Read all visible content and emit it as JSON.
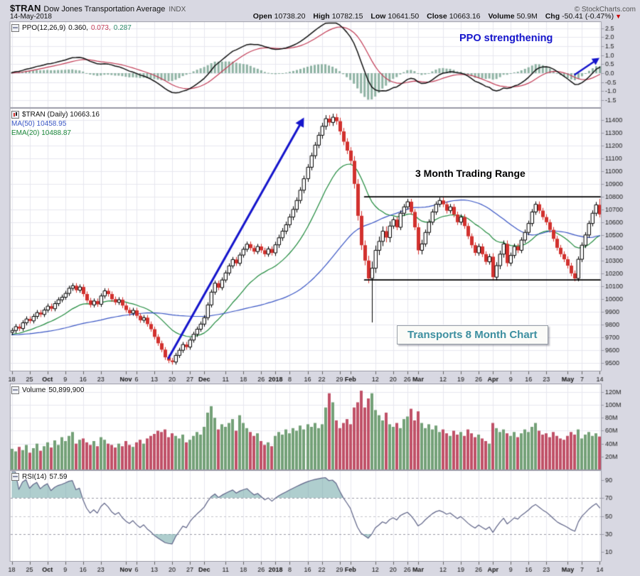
{
  "header": {
    "symbol": "$TRAN",
    "name": "Dow Jones Transportation Average",
    "exchange": "INDX",
    "date": "14-May-2018",
    "copyright": "© StockCharts.com",
    "quote": {
      "open_label": "Open",
      "open": "10738.20",
      "high_label": "High",
      "high": "10782.15",
      "low_label": "Low",
      "low": "10641.50",
      "close_label": "Close",
      "close": "10663.16",
      "volume_label": "Volume",
      "volume": "50.9M",
      "chg_label": "Chg",
      "chg": "-50.41 (-0.47%)",
      "chg_arrow": "▼"
    }
  },
  "labels": {
    "ppo": {
      "name": "PPO(12,26,9)",
      "v1": "0.360,",
      "v2": "0.073,",
      "v3": "0.287"
    },
    "price": {
      "main": "$TRAN (Daily) 10663.16",
      "ma": "MA(50) 10458.95",
      "ema": "EMA(20) 10488.87"
    },
    "volume": {
      "name": "Volume",
      "value": "50,899,900"
    },
    "rsi": {
      "name": "RSI(14)",
      "value": "57.59"
    }
  },
  "annotations": {
    "ppo_text": "PPO strengthening",
    "range_text": "3 Month Trading Range",
    "box_text": "Transports 8 Month Chart"
  },
  "colors": {
    "margin": "#d8d8e2",
    "plot_bg": "#ffffff",
    "grid": "#e7e7ef",
    "border": "#9a9aa6",
    "up_outline": "#000000",
    "down": "#d2312e",
    "ma": "#3a56c5",
    "ema": "#1f8a3c",
    "vol_up": "#74a178",
    "vol_down": "#c05168",
    "ppo_hist": "#8fb3a4",
    "ppo_line": "#111111",
    "ppo_signal": "#c23b55",
    "rsi": "#5f6488",
    "rsi_fill": "rgba(110,165,165,0.55)",
    "annotation_blue": "#1515cc",
    "range_line": "#000000",
    "box_text": "#3d8fa0",
    "chg_arrow_red": "#cc0000"
  },
  "chart_data": {
    "type": "candlestick",
    "title": "Dow Jones Transportation Average ($TRAN) Daily, Sep 2017 - May 2018",
    "history_seed": {
      "value": 9720,
      "days": 50
    },
    "x_ticks": [
      [
        "18",
        0,
        0
      ],
      [
        "25",
        5,
        0
      ],
      [
        "Oct",
        10,
        1
      ],
      [
        "9",
        15,
        0
      ],
      [
        "16",
        20,
        0
      ],
      [
        "23",
        25,
        0
      ],
      [
        "Nov",
        32,
        1
      ],
      [
        "6",
        35,
        0
      ],
      [
        "13",
        40,
        0
      ],
      [
        "20",
        45,
        0
      ],
      [
        "27",
        50,
        0
      ],
      [
        "Dec",
        54,
        1
      ],
      [
        "11",
        60,
        0
      ],
      [
        "18",
        65,
        0
      ],
      [
        "26",
        70,
        0
      ],
      [
        "2018",
        74,
        1
      ],
      [
        "8",
        78,
        0
      ],
      [
        "16",
        83,
        0
      ],
      [
        "22",
        87,
        0
      ],
      [
        "29",
        92,
        0
      ],
      [
        "Feb",
        95,
        1
      ],
      [
        "12",
        102,
        0
      ],
      [
        "20",
        107,
        0
      ],
      [
        "26",
        111,
        0
      ],
      [
        "Mar",
        114,
        1
      ],
      [
        "12",
        121,
        0
      ],
      [
        "19",
        126,
        0
      ],
      [
        "26",
        131,
        0
      ],
      [
        "Apr",
        135,
        1
      ],
      [
        "9",
        140,
        0
      ],
      [
        "16",
        145,
        0
      ],
      [
        "23",
        150,
        0
      ],
      [
        "May",
        156,
        1
      ],
      [
        "7",
        160,
        0
      ],
      [
        "14",
        165,
        0
      ]
    ],
    "candles": [
      [
        9740,
        9773,
        9722,
        9755
      ],
      [
        9755,
        9803,
        9737,
        9785
      ],
      [
        9785,
        9803,
        9752,
        9770
      ],
      [
        9770,
        9833,
        9752,
        9815
      ],
      [
        9815,
        9863,
        9797,
        9845
      ],
      [
        9845,
        9863,
        9812,
        9830
      ],
      [
        9830,
        9883,
        9812,
        9865
      ],
      [
        9865,
        9913,
        9847,
        9895
      ],
      [
        9895,
        9913,
        9862,
        9880
      ],
      [
        9880,
        9933,
        9862,
        9915
      ],
      [
        9915,
        9963,
        9897,
        9945
      ],
      [
        9945,
        9963,
        9907,
        9925
      ],
      [
        9925,
        9983,
        9907,
        9965
      ],
      [
        9965,
        10013,
        9947,
        9995
      ],
      [
        9995,
        10033,
        9977,
        10015
      ],
      [
        10015,
        10063,
        9997,
        10045
      ],
      [
        10045,
        10103,
        10027,
        10085
      ],
      [
        10085,
        10123,
        10067,
        10105
      ],
      [
        10105,
        10123,
        10052,
        10070
      ],
      [
        10070,
        10113,
        10052,
        10095
      ],
      [
        10095,
        10113,
        10022,
        10040
      ],
      [
        10040,
        10058,
        9972,
        9990
      ],
      [
        9990,
        10008,
        9937,
        9955
      ],
      [
        9955,
        10003,
        9937,
        9985
      ],
      [
        9985,
        10003,
        9942,
        9960
      ],
      [
        9960,
        10043,
        9942,
        10025
      ],
      [
        10025,
        10083,
        10007,
        10065
      ],
      [
        10065,
        10083,
        10022,
        10040
      ],
      [
        10040,
        10058,
        9982,
        10000
      ],
      [
        10000,
        10018,
        9957,
        9975
      ],
      [
        9975,
        10013,
        9957,
        9995
      ],
      [
        9995,
        10013,
        9932,
        9950
      ],
      [
        9950,
        9968,
        9897,
        9915
      ],
      [
        9915,
        9933,
        9872,
        9890
      ],
      [
        9890,
        9930,
        9872,
        9912
      ],
      [
        9912,
        9930,
        9852,
        9870
      ],
      [
        9870,
        9888,
        9817,
        9835
      ],
      [
        9835,
        9873,
        9817,
        9855
      ],
      [
        9855,
        9873,
        9787,
        9805
      ],
      [
        9805,
        9823,
        9747,
        9765
      ],
      [
        9765,
        9783,
        9687,
        9705
      ],
      [
        9705,
        9723,
        9637,
        9655
      ],
      [
        9655,
        9673,
        9587,
        9605
      ],
      [
        9605,
        9623,
        9527,
        9545
      ],
      [
        9545,
        9563,
        9502,
        9520
      ],
      [
        9520,
        9538,
        9490,
        9508
      ],
      [
        9508,
        9578,
        9490,
        9560
      ],
      [
        9560,
        9618,
        9542,
        9600
      ],
      [
        9600,
        9663,
        9582,
        9645
      ],
      [
        9645,
        9663,
        9607,
        9625
      ],
      [
        9625,
        9698,
        9607,
        9680
      ],
      [
        9680,
        9743,
        9662,
        9725
      ],
      [
        9725,
        9783,
        9707,
        9765
      ],
      [
        9765,
        9823,
        9747,
        9805
      ],
      [
        9805,
        9873,
        9787,
        9855
      ],
      [
        9855,
        9973,
        9837,
        9955
      ],
      [
        9955,
        10073,
        9937,
        10055
      ],
      [
        10055,
        10143,
        10037,
        10125
      ],
      [
        10125,
        10143,
        10072,
        10090
      ],
      [
        10090,
        10168,
        10072,
        10150
      ],
      [
        10150,
        10223,
        10132,
        10205
      ],
      [
        10205,
        10278,
        10187,
        10260
      ],
      [
        10260,
        10328,
        10242,
        10310
      ],
      [
        10310,
        10328,
        10262,
        10280
      ],
      [
        10280,
        10363,
        10262,
        10345
      ],
      [
        10345,
        10408,
        10327,
        10390
      ],
      [
        10390,
        10448,
        10372,
        10430
      ],
      [
        10430,
        10448,
        10382,
        10400
      ],
      [
        10400,
        10418,
        10354,
        10372
      ],
      [
        10372,
        10430,
        10354,
        10412
      ],
      [
        10412,
        10430,
        10364,
        10382
      ],
      [
        10382,
        10400,
        10334,
        10352
      ],
      [
        10352,
        10410,
        10334,
        10392
      ],
      [
        10392,
        10410,
        10344,
        10362
      ],
      [
        10362,
        10447,
        10340,
        10425
      ],
      [
        10425,
        10502,
        10403,
        10480
      ],
      [
        10480,
        10554,
        10458,
        10532
      ],
      [
        10532,
        10604,
        10510,
        10582
      ],
      [
        10582,
        10664,
        10560,
        10642
      ],
      [
        10642,
        10724,
        10620,
        10702
      ],
      [
        10702,
        10794,
        10680,
        10772
      ],
      [
        10772,
        10874,
        10750,
        10852
      ],
      [
        10852,
        10964,
        10830,
        10942
      ],
      [
        10942,
        11054,
        10920,
        11032
      ],
      [
        11032,
        11144,
        11010,
        11122
      ],
      [
        11122,
        11227,
        11100,
        11205
      ],
      [
        11205,
        11304,
        11183,
        11282
      ],
      [
        11282,
        11377,
        11257,
        11352
      ],
      [
        11352,
        11437,
        11327,
        11412
      ],
      [
        11412,
        11437,
        11357,
        11382
      ],
      [
        11382,
        11448,
        11357,
        11423
      ],
      [
        11423,
        11448,
        11367,
        11392
      ],
      [
        11392,
        11417,
        11287,
        11312
      ],
      [
        11312,
        11337,
        11207,
        11232
      ],
      [
        11232,
        11257,
        11137,
        11162
      ],
      [
        11162,
        11187,
        11057,
        11082
      ],
      [
        11082,
        11117,
        10867,
        10902
      ],
      [
        10902,
        10937,
        10617,
        10652
      ],
      [
        10652,
        10687,
        10387,
        10422
      ],
      [
        10422,
        10457,
        10267,
        10302
      ],
      [
        10302,
        10337,
        10127,
        10162
      ],
      [
        10162,
        10292,
        9820,
        10242
      ],
      [
        10242,
        10417,
        10207,
        10382
      ],
      [
        10382,
        10487,
        10347,
        10452
      ],
      [
        10452,
        10567,
        10417,
        10532
      ],
      [
        10532,
        10567,
        10447,
        10482
      ],
      [
        10482,
        10607,
        10447,
        10572
      ],
      [
        10572,
        10642,
        10552,
        10622
      ],
      [
        10622,
        10642,
        10542,
        10562
      ],
      [
        10562,
        10692,
        10542,
        10672
      ],
      [
        10672,
        10742,
        10652,
        10722
      ],
      [
        10722,
        10782,
        10702,
        10762
      ],
      [
        10762,
        10782,
        10662,
        10682
      ],
      [
        10682,
        10702,
        10542,
        10562
      ],
      [
        10562,
        10592,
        10352,
        10382
      ],
      [
        10382,
        10462,
        10352,
        10432
      ],
      [
        10432,
        10542,
        10412,
        10522
      ],
      [
        10522,
        10622,
        10502,
        10602
      ],
      [
        10602,
        10702,
        10582,
        10682
      ],
      [
        10682,
        10762,
        10662,
        10742
      ],
      [
        10742,
        10792,
        10722,
        10772
      ],
      [
        10772,
        10792,
        10722,
        10742
      ],
      [
        10742,
        10762,
        10672,
        10692
      ],
      [
        10692,
        10742,
        10672,
        10722
      ],
      [
        10722,
        10742,
        10642,
        10662
      ],
      [
        10662,
        10682,
        10582,
        10602
      ],
      [
        10602,
        10662,
        10582,
        10642
      ],
      [
        10642,
        10662,
        10552,
        10572
      ],
      [
        10572,
        10592,
        10472,
        10492
      ],
      [
        10492,
        10512,
        10402,
        10422
      ],
      [
        10422,
        10442,
        10342,
        10362
      ],
      [
        10362,
        10432,
        10342,
        10412
      ],
      [
        10412,
        10432,
        10332,
        10352
      ],
      [
        10352,
        10372,
        10272,
        10292
      ],
      [
        10292,
        10352,
        10272,
        10332
      ],
      [
        10332,
        10357,
        10147,
        10172
      ],
      [
        10172,
        10287,
        10147,
        10262
      ],
      [
        10262,
        10377,
        10237,
        10352
      ],
      [
        10352,
        10457,
        10327,
        10432
      ],
      [
        10432,
        10457,
        10257,
        10282
      ],
      [
        10282,
        10362,
        10262,
        10342
      ],
      [
        10342,
        10432,
        10322,
        10412
      ],
      [
        10412,
        10432,
        10362,
        10382
      ],
      [
        10382,
        10482,
        10362,
        10462
      ],
      [
        10462,
        10542,
        10442,
        10522
      ],
      [
        10522,
        10612,
        10502,
        10592
      ],
      [
        10592,
        10702,
        10572,
        10682
      ],
      [
        10682,
        10762,
        10662,
        10742
      ],
      [
        10742,
        10762,
        10672,
        10692
      ],
      [
        10692,
        10712,
        10622,
        10642
      ],
      [
        10642,
        10662,
        10582,
        10602
      ],
      [
        10602,
        10622,
        10522,
        10542
      ],
      [
        10542,
        10562,
        10452,
        10472
      ],
      [
        10472,
        10492,
        10382,
        10402
      ],
      [
        10402,
        10422,
        10332,
        10352
      ],
      [
        10352,
        10372,
        10292,
        10312
      ],
      [
        10312,
        10332,
        10242,
        10262
      ],
      [
        10262,
        10282,
        10182,
        10202
      ],
      [
        10202,
        10222,
        10142,
        10162
      ],
      [
        10162,
        10332,
        10142,
        10312
      ],
      [
        10312,
        10442,
        10292,
        10422
      ],
      [
        10422,
        10522,
        10402,
        10502
      ],
      [
        10502,
        10612,
        10482,
        10592
      ],
      [
        10592,
        10692,
        10572,
        10672
      ],
      [
        10672,
        10758,
        10652,
        10738
      ],
      [
        10738,
        10782.15,
        10641.5,
        10663.16
      ]
    ],
    "volume": [
      32,
      28,
      35,
      30,
      38,
      26,
      33,
      40,
      29,
      36,
      42,
      34,
      45,
      38,
      50,
      44,
      52,
      58,
      40,
      46,
      48,
      42,
      38,
      44,
      36,
      50,
      46,
      40,
      38,
      34,
      40,
      36,
      44,
      38,
      35,
      42,
      46,
      40,
      48,
      52,
      55,
      60,
      58,
      62,
      50,
      56,
      52,
      48,
      54,
      42,
      46,
      52,
      58,
      54,
      66,
      88,
      98,
      80,
      62,
      70,
      66,
      72,
      78,
      60,
      84,
      72,
      64,
      58,
      52,
      56,
      44,
      38,
      42,
      36,
      52,
      58,
      54,
      62,
      56,
      64,
      60,
      68,
      62,
      70,
      66,
      72,
      64,
      70,
      96,
      118,
      104,
      76,
      64,
      72,
      78,
      70,
      96,
      104,
      122,
      96,
      110,
      118,
      92,
      84,
      76,
      88,
      70,
      66,
      72,
      64,
      78,
      82,
      94,
      76,
      90,
      72,
      64,
      70,
      62,
      68,
      58,
      62,
      56,
      52,
      60,
      54,
      58,
      52,
      62,
      56,
      50,
      54,
      48,
      44,
      40,
      72,
      64,
      58,
      62,
      56,
      52,
      58,
      50,
      56,
      62,
      58,
      66,
      72,
      60,
      54,
      56,
      50,
      58,
      52,
      48,
      46,
      52,
      58,
      54,
      62,
      48,
      54,
      58,
      52,
      56,
      51
    ],
    "volume_axis": {
      "ticks": [
        20,
        40,
        60,
        80,
        100,
        120
      ],
      "max": 132,
      "unit": "M"
    },
    "ppo": {
      "params": [
        12,
        26,
        9
      ],
      "last": [
        0.36,
        0.073,
        0.287
      ],
      "y_ticks": [
        2.5,
        2.0,
        1.5,
        1.0,
        0.5,
        0.0,
        -0.5,
        -1.0,
        -1.5
      ],
      "y_range": [
        -1.9,
        2.85
      ],
      "arrow": {
        "from": [
          158,
          -0.08
        ],
        "to": [
          167,
          0.85
        ]
      }
    },
    "price": {
      "y_range": [
        9440,
        11490
      ],
      "ticks": {
        "min": 9500,
        "max": 11400,
        "step": 100
      },
      "last_close": 10663.16,
      "ma50_last": 10458.95,
      "ema20_last": 10488.87,
      "range_lines": {
        "upper": 10800,
        "lower": 10150,
        "start_index": 99
      },
      "trend_arrow": {
        "from": [
          44,
          9540
        ],
        "to": [
          82,
          11420
        ]
      }
    },
    "rsi": {
      "period": 14,
      "last": 57.59,
      "y_ticks": [
        90,
        70,
        50,
        30,
        10
      ],
      "levels": [
        70,
        50,
        30
      ],
      "fill_above": 70,
      "fill_below": 30
    }
  }
}
